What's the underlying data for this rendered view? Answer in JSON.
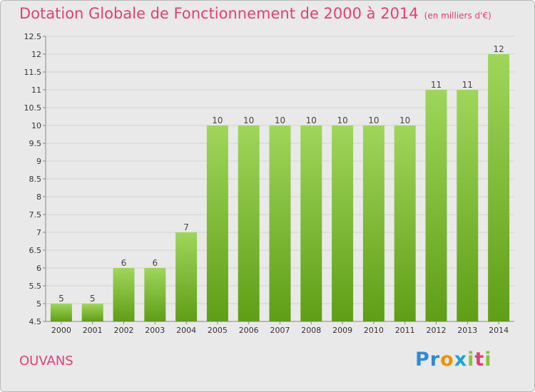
{
  "title": "Dotation Globale de Fonctionnement de 2000 à 2014",
  "subtitle": "(en milliers d'€)",
  "commune": "OUVANS",
  "logo": {
    "letters": [
      "P",
      "r",
      "o",
      "x",
      "i",
      "t",
      "i"
    ],
    "colors": [
      "#2e8ad8",
      "#2e8ad8",
      "#f29100",
      "#1aa3d9",
      "#88c43a",
      "#e0407a",
      "#88c43a"
    ]
  },
  "colors": {
    "bar_top": "#9fd65a",
    "bar_bottom": "#5f9e16",
    "title": "#e0407a"
  },
  "chart_data": {
    "type": "bar",
    "categories": [
      "2000",
      "2001",
      "2002",
      "2003",
      "2004",
      "2005",
      "2006",
      "2007",
      "2008",
      "2009",
      "2010",
      "2011",
      "2012",
      "2013",
      "2014"
    ],
    "values": [
      5,
      5,
      6,
      6,
      7,
      10,
      10,
      10,
      10,
      10,
      10,
      10,
      11,
      11,
      12
    ],
    "value_labels": [
      "5",
      "5",
      "6",
      "6",
      "7",
      "10",
      "10",
      "10",
      "10",
      "10",
      "10",
      "10",
      "11",
      "11",
      "12"
    ],
    "ylim": [
      4.5,
      12.5
    ],
    "yticks": [
      "4.5",
      "5",
      "5.5",
      "6",
      "6.5",
      "7",
      "7.5",
      "8",
      "8.5",
      "9",
      "9.5",
      "10",
      "10.5",
      "11",
      "11.5",
      "12",
      "12.5"
    ],
    "grid": true
  }
}
